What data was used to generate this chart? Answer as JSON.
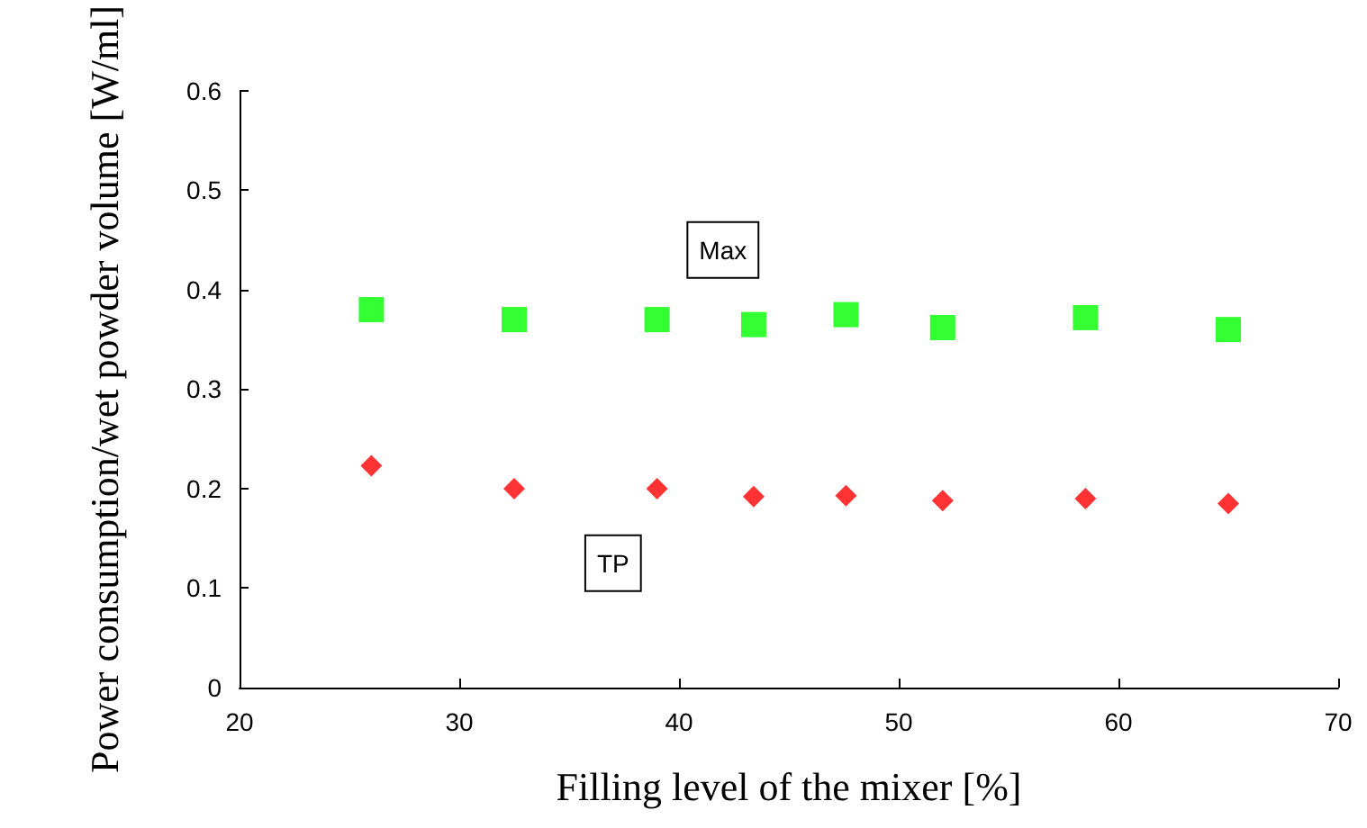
{
  "chart_data": {
    "type": "scatter",
    "xlabel": "Filling level of the mixer [%]",
    "ylabel": "Power consumption/wet powder volume [W/ml]",
    "xlim": [
      20,
      70
    ],
    "xticks": [
      20,
      30,
      40,
      50,
      60,
      70
    ],
    "ylim": [
      0,
      0.6
    ],
    "yticks": [
      0,
      0.1,
      0.2,
      0.3,
      0.4,
      0.5,
      0.6
    ],
    "grid": false,
    "series": [
      {
        "color": "#00ff00",
        "marker": "square",
        "x": [
          26,
          32.5,
          39,
          43.4,
          47.6,
          52,
          58.5,
          65
        ],
        "values": [
          0.38,
          0.37,
          0.37,
          0.365,
          0.375,
          0.362,
          0.372,
          0.36
        ]
      },
      {
        "color": "#ff0000",
        "marker": "diamond",
        "x": [
          26,
          32.5,
          39,
          43.4,
          47.6,
          52,
          58.5,
          65
        ],
        "values": [
          0.223,
          0.2,
          0.2,
          0.192,
          0.193,
          0.188,
          0.19,
          0.185
        ]
      }
    ],
    "annotations": [
      {
        "text": "Max",
        "x": 42,
        "y": 0.44
      },
      {
        "text": "TP",
        "x": 37,
        "y": 0.125
      }
    ]
  }
}
